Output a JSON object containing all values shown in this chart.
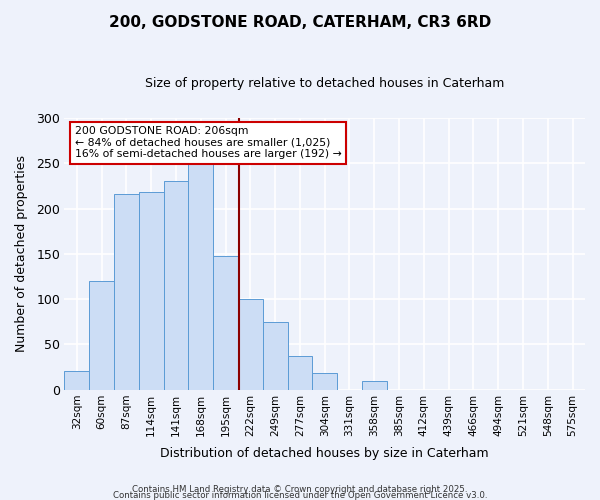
{
  "title": "200, GODSTONE ROAD, CATERHAM, CR3 6RD",
  "subtitle": "Size of property relative to detached houses in Caterham",
  "xlabel": "Distribution of detached houses by size in Caterham",
  "ylabel": "Number of detached properties",
  "bar_labels": [
    "32sqm",
    "60sqm",
    "87sqm",
    "114sqm",
    "141sqm",
    "168sqm",
    "195sqm",
    "222sqm",
    "249sqm",
    "277sqm",
    "304sqm",
    "331sqm",
    "358sqm",
    "385sqm",
    "412sqm",
    "439sqm",
    "466sqm",
    "494sqm",
    "521sqm",
    "548sqm",
    "575sqm"
  ],
  "bar_values": [
    20,
    120,
    216,
    218,
    231,
    250,
    148,
    100,
    75,
    37,
    18,
    0,
    10,
    0,
    0,
    0,
    0,
    0,
    0,
    0,
    0
  ],
  "bar_color": "#ccddf5",
  "bar_edge_color": "#5b9bd5",
  "vline_x": 7.0,
  "vline_color": "#8B0000",
  "annotation_title": "200 GODSTONE ROAD: 206sqm",
  "annotation_line1": "← 84% of detached houses are smaller (1,025)",
  "annotation_line2": "16% of semi-detached houses are larger (192) →",
  "annotation_box_color": "#ffffff",
  "annotation_box_edge": "#cc0000",
  "ylim": [
    0,
    300
  ],
  "yticks": [
    0,
    50,
    100,
    150,
    200,
    250,
    300
  ],
  "bg_color": "#eef2fb",
  "footer1": "Contains HM Land Registry data © Crown copyright and database right 2025.",
  "footer2": "Contains public sector information licensed under the Open Government Licence v3.0."
}
